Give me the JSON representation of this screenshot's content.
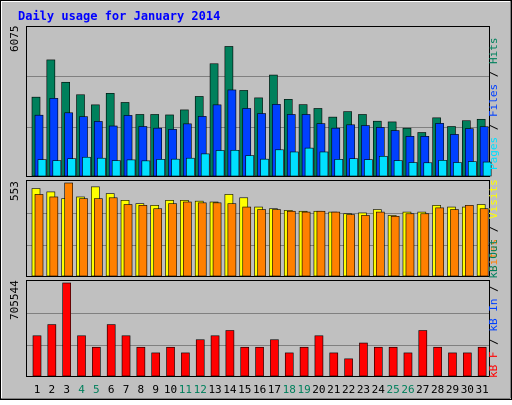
{
  "chart_data": [
    {
      "type": "bar",
      "title": "Daily usage for January 2014",
      "days": [
        "1",
        "2",
        "3",
        "4",
        "5",
        "6",
        "7",
        "8",
        "9",
        "10",
        "11",
        "12",
        "13",
        "14",
        "15",
        "16",
        "17",
        "18",
        "19",
        "20",
        "21",
        "22",
        "23",
        "24",
        "25",
        "26",
        "27",
        "28",
        "29",
        "30",
        "31"
      ],
      "weekend_days": [
        4,
        5,
        11,
        12,
        18,
        19,
        25,
        26
      ],
      "ymax": 6075,
      "series": [
        {
          "name": "Hits",
          "color": "#00805c",
          "values": [
            3280,
            4830,
            3900,
            3380,
            2960,
            3440,
            3060,
            2560,
            2560,
            2540,
            2750,
            3310,
            4670,
            5390,
            3560,
            3250,
            4200,
            3190,
            2970,
            2810,
            2450,
            2680,
            2560,
            2280,
            2250,
            1990,
            1810,
            2420,
            2060,
            2300,
            2360
          ]
        },
        {
          "name": "Files",
          "color": "#0040ff",
          "values": [
            2530,
            3230,
            2630,
            2470,
            2270,
            2080,
            2520,
            2060,
            1990,
            1940,
            2170,
            2480,
            2960,
            3580,
            2810,
            2600,
            2980,
            2560,
            2560,
            2180,
            1990,
            2130,
            2100,
            2020,
            1890,
            1650,
            1650,
            2190,
            1730,
            1970,
            2050
          ]
        },
        {
          "name": "Pages",
          "color": "#00e0ff",
          "values": [
            680,
            640,
            720,
            780,
            740,
            640,
            670,
            630,
            690,
            700,
            740,
            920,
            1060,
            1070,
            850,
            700,
            1090,
            1000,
            1160,
            1000,
            690,
            720,
            680,
            820,
            640,
            560,
            550,
            650,
            560,
            600,
            580
          ]
        }
      ]
    },
    {
      "type": "bar",
      "ymax": 553,
      "series": [
        {
          "name": "Visits",
          "color": "#ffff00",
          "values": [
            520,
            500,
            460,
            470,
            530,
            490,
            450,
            430,
            420,
            450,
            450,
            445,
            440,
            485,
            465,
            410,
            400,
            390,
            385,
            385,
            380,
            370,
            375,
            395,
            360,
            380,
            380,
            420,
            410,
            410,
            425
          ]
        },
        {
          "name": "Sites",
          "color": "#ff8000",
          "values": [
            485,
            470,
            553,
            460,
            460,
            465,
            425,
            420,
            400,
            430,
            440,
            435,
            435,
            430,
            410,
            395,
            395,
            385,
            380,
            385,
            380,
            365,
            360,
            380,
            355,
            370,
            370,
            405,
            395,
            420,
            400
          ]
        }
      ]
    },
    {
      "type": "bar",
      "ymax": 705544,
      "series": [
        {
          "name": "KBytes",
          "color": "#ff0000",
          "values": [
            305000,
            390000,
            705544,
            305000,
            218000,
            390000,
            305000,
            218000,
            175000,
            218000,
            175000,
            275000,
            305000,
            345000,
            218000,
            218000,
            275000,
            175000,
            218000,
            305000,
            175000,
            130000,
            250000,
            218000,
            218000,
            175000,
            345000,
            218000,
            175000,
            175000,
            218000
          ]
        }
      ]
    }
  ],
  "legend_labels": {
    "hits": "Hits",
    "files": "Files",
    "pages": "Pages",
    "visits": "Visits",
    "sites": "Sites",
    "kbytes": "kB F",
    "kb_in": "kB In",
    "kb_out": "kB Out",
    "sep": " / "
  },
  "colors": {
    "background": "#c0c0c0",
    "title": "#0000ff",
    "weekday_label": "#000000",
    "weekend_label": "#00805c",
    "hits": "#00805c",
    "files": "#0040ff",
    "pages": "#00e0ff",
    "visits": "#ffff00",
    "sites": "#ff8000",
    "kbytes": "#ff0000",
    "kb_in": "#0040ff",
    "kb_out": "#00805c"
  }
}
